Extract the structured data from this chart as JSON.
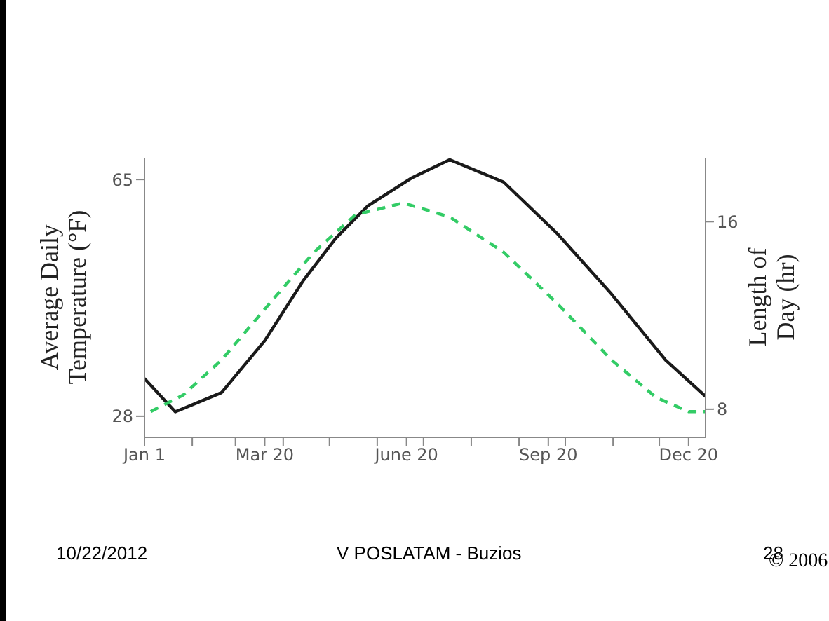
{
  "chart_data": {
    "type": "line",
    "ylabel": "Average Daily Temperature (°F)",
    "y2label": "Length of Day (hr)",
    "x": [
      "--01-01",
      "--01-21",
      "--02-20",
      "--03-20",
      "--04-14",
      "--05-05",
      "--05-26",
      "--06-23",
      "--07-18",
      "--08-22",
      "--09-26",
      "--10-31",
      "--12-05",
      "--12-31"
    ],
    "series": [
      {
        "color": "#1a1a1a",
        "line_style": "solid",
        "values": [
          33.9,
          28.7,
          31.7,
          39.8,
          49.2,
          55.8,
          60.9,
          65.2,
          68.1,
          64.6,
          56.5,
          47.1,
          36.8,
          31.1
        ]
      },
      {
        "color": "#33cc66",
        "line_style": "dashed",
        "axis": "y2",
        "x": [
          "--01-05",
          "--01-26",
          "--02-20",
          "--03-23",
          "--04-21",
          "--05-18",
          "--06-18",
          "--07-18",
          "--08-22",
          "--09-26",
          "--10-31",
          "--11-29",
          "--12-20",
          "--12-31"
        ],
        "values": [
          7.9,
          8.6,
          10.1,
          12.5,
          14.7,
          16.3,
          16.8,
          16.2,
          14.7,
          12.5,
          10.1,
          8.5,
          7.9,
          7.9
        ]
      }
    ],
    "xlim": [
      "--01-01",
      "--12-31"
    ],
    "xticks": [
      {
        "value": "--01-01",
        "label": "Jan 1"
      },
      {
        "value": "--02-01",
        "label": null
      },
      {
        "value": "--03-01",
        "label": null
      },
      {
        "value": "--03-20",
        "label": "Mar 20"
      },
      {
        "value": "--04-01",
        "label": null
      },
      {
        "value": "--05-01",
        "label": null
      },
      {
        "value": "--06-01",
        "label": null
      },
      {
        "value": "--06-20",
        "label": "June 20"
      },
      {
        "value": "--07-01",
        "label": null
      },
      {
        "value": "--08-01",
        "label": null
      },
      {
        "value": "--09-01",
        "label": null
      },
      {
        "value": "--09-20",
        "label": "Sep 20"
      },
      {
        "value": "--10-01",
        "label": null
      },
      {
        "value": "--11-01",
        "label": null
      },
      {
        "value": "--12-01",
        "label": null
      },
      {
        "value": "--12-20",
        "label": "Dec 20"
      }
    ],
    "ylim": [
      24.7,
      68.3
    ],
    "yticks": [
      28,
      65
    ],
    "y2lim": [
      6.8,
      18.7
    ],
    "y2ticks": [
      8,
      16
    ],
    "grid": false,
    "legend": false,
    "marker": "none",
    "annotations": [
      "10/22/2012",
      "V POSLATAM - Buzios",
      "28",
      "© 2006"
    ]
  }
}
